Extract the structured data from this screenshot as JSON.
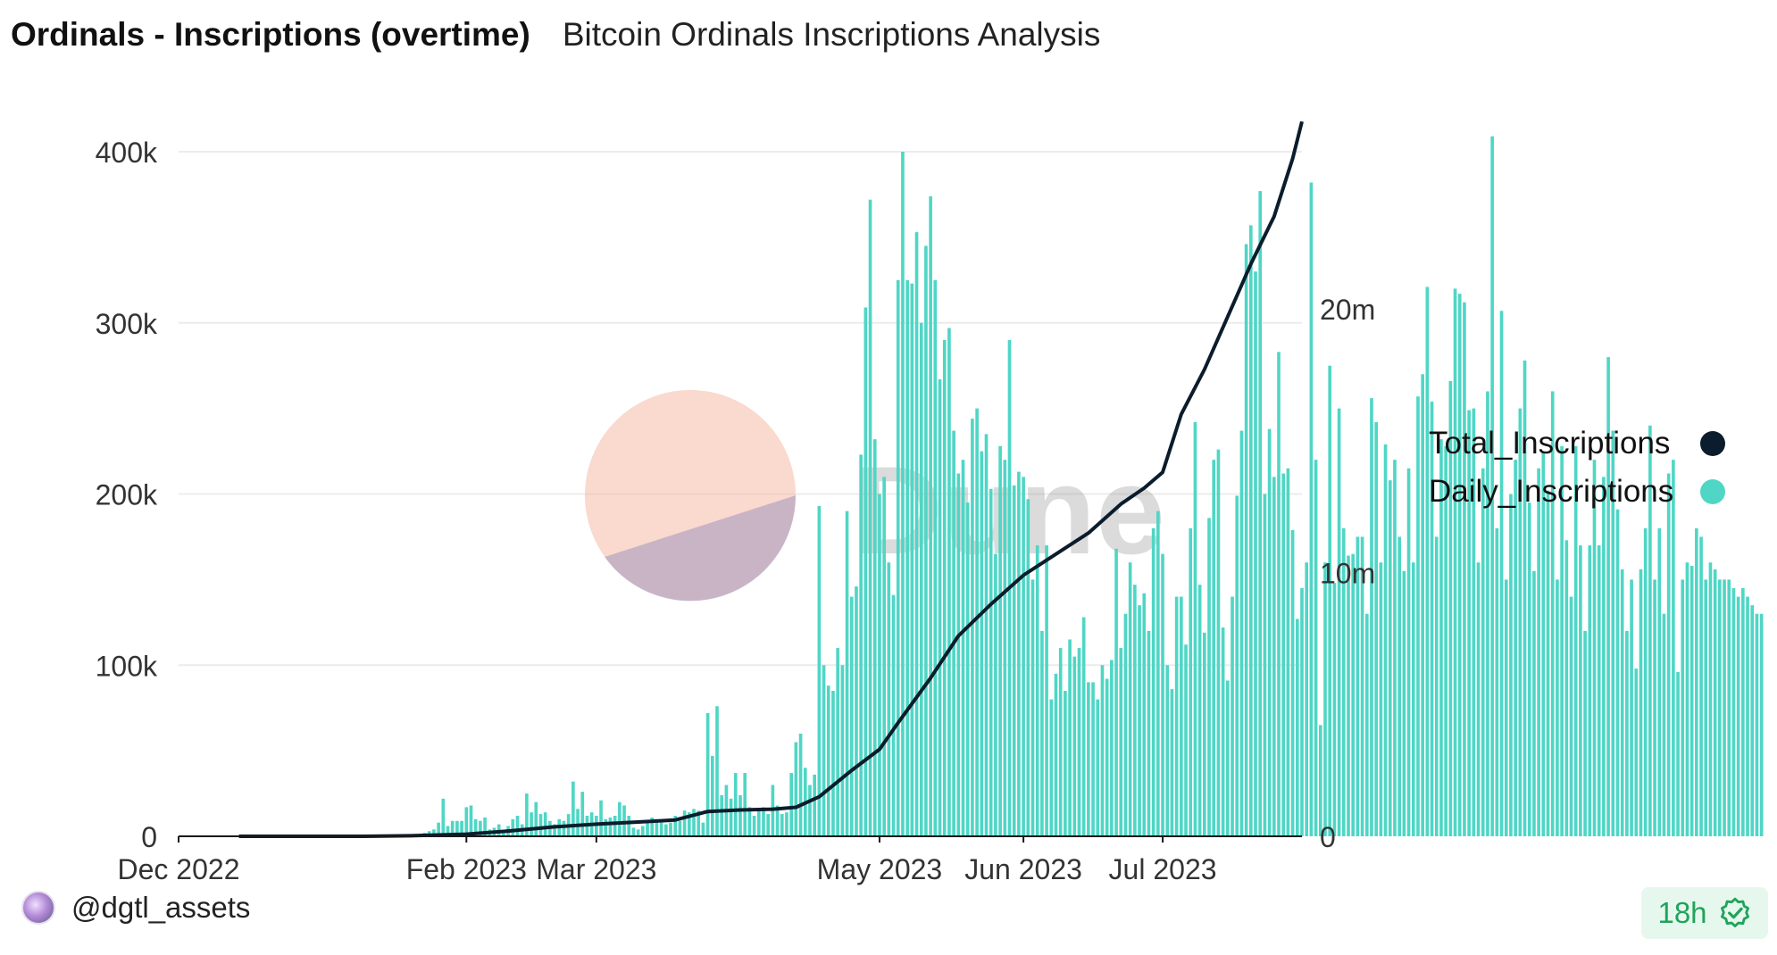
{
  "header": {
    "title": "Ordinals - Inscriptions (overtime)",
    "subtitle": "Bitcoin Ordinals Inscriptions Analysis"
  },
  "watermark": "Dune",
  "footer": {
    "username": "@dgtl_assets",
    "refresh_age": "18h",
    "refresh_icon": "check-badge-icon"
  },
  "colors": {
    "daily": "#4fd6c5",
    "total": "#0b1c2c",
    "grid": "#ececec",
    "badge_text": "#21a35a"
  },
  "chart_data": {
    "type": "bar",
    "xlim": [
      "2022-12-01",
      "2023-07-31"
    ],
    "x_ticks": [
      "Dec 2022",
      "Feb 2023",
      "Mar 2023",
      "May 2023",
      "Jun 2023",
      "Jul 2023"
    ],
    "x_tick_dates": [
      "2022-12-01",
      "2023-02-01",
      "2023-03-01",
      "2023-05-01",
      "2023-06-01",
      "2023-07-01"
    ],
    "y_left": {
      "ticks": [
        "0",
        "100k",
        "200k",
        "300k",
        "400k"
      ],
      "tick_values": [
        0,
        100000,
        200000,
        300000,
        400000
      ],
      "lim": [
        0,
        400000
      ]
    },
    "y_right": {
      "ticks": [
        "0",
        "10m",
        "20m"
      ],
      "tick_values": [
        0,
        10000000,
        20000000
      ],
      "lim": [
        0,
        26000000
      ]
    },
    "grid": true,
    "legend_position": "right",
    "series": [
      {
        "name": "Total_Inscriptions",
        "type": "line",
        "axis": "right",
        "points": [
          [
            "2022-12-14",
            0
          ],
          [
            "2023-01-10",
            0
          ],
          [
            "2023-01-20",
            20000
          ],
          [
            "2023-02-01",
            80000
          ],
          [
            "2023-02-10",
            200000
          ],
          [
            "2023-02-20",
            360000
          ],
          [
            "2023-03-01",
            460000
          ],
          [
            "2023-03-10",
            540000
          ],
          [
            "2023-03-18",
            620000
          ],
          [
            "2023-03-25",
            940000
          ],
          [
            "2023-04-01",
            1000000
          ],
          [
            "2023-04-08",
            1030000
          ],
          [
            "2023-04-13",
            1100000
          ],
          [
            "2023-04-18",
            1500000
          ],
          [
            "2023-04-25",
            2500000
          ],
          [
            "2023-05-01",
            3300000
          ],
          [
            "2023-05-05",
            4300000
          ],
          [
            "2023-05-12",
            6000000
          ],
          [
            "2023-05-18",
            7600000
          ],
          [
            "2023-05-25",
            8800000
          ],
          [
            "2023-06-01",
            9900000
          ],
          [
            "2023-06-08",
            10700000
          ],
          [
            "2023-06-15",
            11500000
          ],
          [
            "2023-06-22",
            12600000
          ],
          [
            "2023-06-27",
            13200000
          ],
          [
            "2023-07-01",
            13800000
          ],
          [
            "2023-07-05",
            16000000
          ],
          [
            "2023-07-10",
            17700000
          ],
          [
            "2023-07-15",
            19700000
          ],
          [
            "2023-07-20",
            21700000
          ],
          [
            "2023-07-25",
            23500000
          ],
          [
            "2023-07-29",
            25700000
          ],
          [
            "2023-07-31",
            27100000
          ]
        ]
      },
      {
        "name": "Daily_Inscriptions",
        "type": "bar",
        "axis": "left",
        "start_date": "2022-12-14",
        "values": [
          0,
          0,
          0,
          0,
          0,
          0,
          0,
          0,
          0,
          0,
          0,
          0,
          0,
          0,
          0,
          0,
          0,
          0,
          0,
          0,
          0,
          0,
          0,
          0,
          0,
          0,
          0,
          0,
          0,
          0,
          0,
          0,
          0,
          0,
          0,
          0,
          0,
          0,
          0,
          0,
          2000,
          3000,
          4000,
          8000,
          22000,
          6000,
          9000,
          9000,
          9000,
          17000,
          18000,
          10000,
          9000,
          11000,
          4000,
          5000,
          7000,
          3000,
          6000,
          10000,
          12000,
          7000,
          25000,
          14000,
          20000,
          13000,
          14000,
          9000,
          7000,
          10000,
          9000,
          13000,
          32000,
          16000,
          26000,
          12000,
          14000,
          12000,
          21000,
          10000,
          11000,
          12000,
          20000,
          18000,
          12000,
          5000,
          4000,
          6000,
          8000,
          11000,
          10000,
          8000,
          7000,
          8000,
          12000,
          9000,
          15000,
          14000,
          16000,
          15000,
          8000,
          72000,
          47000,
          76000,
          24000,
          30000,
          22000,
          37000,
          24000,
          37000,
          17000,
          12000,
          15000,
          17000,
          13000,
          30000,
          18000,
          13000,
          14000,
          37000,
          55000,
          60000,
          40000,
          30000,
          36000,
          193000,
          100000,
          88000,
          85000,
          110000,
          100000,
          190000,
          140000,
          146000,
          223000,
          309000,
          372000,
          232000,
          200000,
          210000,
          160000,
          141000,
          325000,
          400000,
          325000,
          323000,
          353000,
          300000,
          345000,
          374000,
          325000,
          267000,
          290000,
          297000,
          237000,
          212000,
          220000,
          195000,
          244000,
          250000,
          225000,
          235000,
          203000,
          165000,
          228000,
          220000,
          290000,
          205000,
          213000,
          210000,
          197000,
          150000,
          170000,
          120000,
          170000,
          80000,
          95000,
          110000,
          85000,
          115000,
          105000,
          110000,
          128000,
          90000,
          90000,
          80000,
          100000,
          92000,
          103000,
          168000,
          110000,
          130000,
          160000,
          147000,
          135000,
          142000,
          120000,
          180000,
          190000,
          165000,
          100000,
          86000,
          140000,
          140000,
          112000,
          180000,
          242000,
          147000,
          119000,
          186000,
          220000,
          226000,
          122000,
          91000,
          140000,
          199000,
          237000,
          346000,
          357000,
          330000,
          377000,
          200000,
          238000,
          210000,
          283000,
          212000,
          215000,
          179000,
          127000,
          145000,
          160000,
          382000,
          220000,
          65000,
          160000,
          275000,
          148000,
          250000,
          180000,
          164000,
          165000,
          175000,
          175000,
          130000,
          256000,
          242000,
          160000,
          229000,
          208000,
          220000,
          175000,
          155000,
          215000,
          160000,
          257000,
          270000,
          321000,
          254000,
          175000,
          232000,
          228000,
          266000,
          320000,
          317000,
          312000,
          249000,
          250000,
          160000,
          215000,
          260000,
          409000,
          180000,
          307000,
          150000,
          200000,
          220000,
          250000,
          278000,
          195000,
          155000,
          215000,
          225000,
          202000,
          260000,
          150000,
          228000,
          173000,
          140000,
          228000,
          170000,
          120000,
          170000,
          220000,
          170000,
          210000,
          280000,
          237000,
          191000,
          156000,
          120000,
          150000,
          98000,
          156000,
          180000,
          240000,
          150000,
          180000,
          130000,
          212000,
          220000,
          96000,
          150000,
          160000,
          158000,
          180000,
          175000,
          150000,
          160000,
          156000,
          150000,
          150000,
          150000,
          145000,
          140000,
          145000,
          140000,
          135000,
          130000,
          130000
        ]
      }
    ]
  }
}
